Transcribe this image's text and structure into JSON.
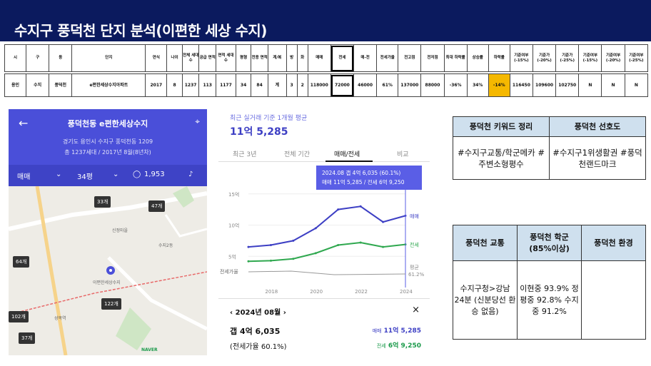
{
  "title": "수지구 풍덕천 단지 분석(이편한 세상 수지)",
  "table": {
    "headers": [
      "시",
      "구",
      "동",
      "단지",
      "연식",
      "나이",
      "전체 세대수",
      "공급 면적",
      "면적 세대수",
      "평형",
      "전용 면적",
      "계/복",
      "방",
      "화",
      "매매",
      "전세",
      "매-전",
      "전세가율",
      "전고점",
      "전저점",
      "최대 하락률",
      "상승률",
      "하락률",
      "기준여부 (-15%)",
      "기준가 (-20%)",
      "기준가 (-25%)",
      "기준여부 (-15%)",
      "기준여부 (-20%)",
      "기준여부 (-25%)"
    ],
    "row": [
      "용인",
      "수지",
      "풍덕천",
      "e편한세상수지아파트",
      "2017",
      "8",
      "1237",
      "113",
      "1177",
      "34",
      "84",
      "계",
      "3",
      "2",
      "118000",
      "72000",
      "46000",
      "61%",
      "137000",
      "88000",
      "-36%",
      "34%",
      "-14%",
      "116450",
      "109600",
      "102750",
      "N",
      "N",
      "N"
    ]
  },
  "map": {
    "apt_name": "풍덕천동 e편한세상수지",
    "address": "경기도 용인시 수지구 풍덕천동 1209",
    "meta": "총 1237세대 / 2017년 8월(8년차)",
    "deal_type": "매매",
    "size": "34평",
    "comments": "1,953",
    "markers": [
      "33개",
      "47개",
      "64개",
      "122개",
      "102개",
      "37개"
    ],
    "labels": [
      "신정마을",
      "수지2동",
      "이편한세상수지",
      "성복역",
      "NAVER"
    ]
  },
  "chart": {
    "caption": "최근 실거래 기준 1개월 평균",
    "price": "11억 5,285",
    "tabs": [
      "최근 3년",
      "전체 기간",
      "매매/전세",
      "비교"
    ],
    "active_tab": "매매/전세",
    "tooltip_line1": "2024.08 갭 4억 6,035 (60.1%)",
    "tooltip_line2": "매매 11억 5,285 / 전세 6억 9,250",
    "series_label_sale": "매매",
    "series_label_jeonse": "전세",
    "side_label": "평균",
    "side_value": "61.2%",
    "jeonse_ratio_label": "전세가율",
    "detail_date": "2024년 08월",
    "gap": "갭 4억 6,035",
    "gap_ratio": "(전세가율 60.1%)",
    "sale_label": "매매",
    "sale_value": "11억 5,285",
    "jeonse_label": "전세",
    "jeonse_value": "6억 9,250"
  },
  "chart_data": {
    "type": "line",
    "x": [
      2017,
      2018,
      2019,
      2020,
      2021,
      2022,
      2023,
      2024
    ],
    "xticks": [
      "2018",
      "2020",
      "2022",
      "2024"
    ],
    "yticks": [
      "15억",
      "10억",
      "5억"
    ],
    "series": [
      {
        "name": "매매",
        "values": [
          6.5,
          6.8,
          7.5,
          9.5,
          12.5,
          13.0,
          10.5,
          11.5
        ]
      },
      {
        "name": "전세",
        "values": [
          4.2,
          4.3,
          4.6,
          5.5,
          6.8,
          7.2,
          6.5,
          6.9
        ]
      }
    ],
    "ylim": [
      0,
      16
    ]
  },
  "keywords": {
    "h1": "풍덕천 키워드 정리",
    "h2": "풍덕천 선호도",
    "v1": "#수지구교통/학군메카 #주변소형평수",
    "v2": "#수지구1위생활권 #풍덕천랜드마크"
  },
  "env": {
    "h1": "풍덕천 교통",
    "h2": "풍덕천 학군 (85%이상)",
    "h3": "풍덕천 환경",
    "v1": "수지구청>강남 24분 (신분당선 환승 없음)",
    "v2": "이현중 93.9% 정평중 92.8% 수지중 91.2%",
    "v3": ""
  }
}
